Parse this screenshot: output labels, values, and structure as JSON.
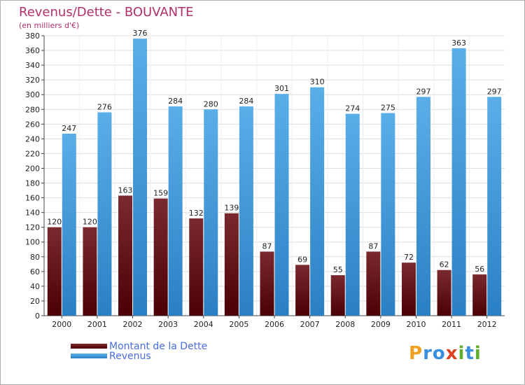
{
  "colors": {
    "title": "#b0306a",
    "debt_top": "#7a2a2e",
    "debt_bottom": "#4a0006",
    "rev_top": "#5aaee8",
    "rev_bottom": "#2a80c4",
    "grid": "#dddddd",
    "legend_text": "#4a6ee0"
  },
  "chart_data": {
    "type": "bar",
    "title": "Revenus/Dette - BOUVANTE",
    "subtitle": "(en milliers d'€)",
    "categories": [
      "2000",
      "2001",
      "2002",
      "2003",
      "2004",
      "2005",
      "2006",
      "2007",
      "2008",
      "2009",
      "2010",
      "2011",
      "2012"
    ],
    "series": [
      {
        "name": "Montant de la Dette",
        "values": [
          120,
          120,
          163,
          159,
          132,
          139,
          87,
          69,
          55,
          87,
          72,
          62,
          56
        ]
      },
      {
        "name": "Revenus",
        "values": [
          247,
          276,
          376,
          284,
          280,
          284,
          301,
          310,
          274,
          275,
          297,
          363,
          297
        ]
      }
    ],
    "ylim": [
      0,
      380
    ],
    "yticks": [
      0,
      20,
      40,
      60,
      80,
      100,
      120,
      140,
      160,
      180,
      200,
      220,
      240,
      260,
      280,
      300,
      320,
      340,
      360,
      380
    ],
    "grid": true,
    "legend_position": "bottom-left"
  },
  "logo": {
    "letters": [
      "P",
      "r",
      "o",
      "x",
      "i",
      "t",
      "i"
    ]
  }
}
